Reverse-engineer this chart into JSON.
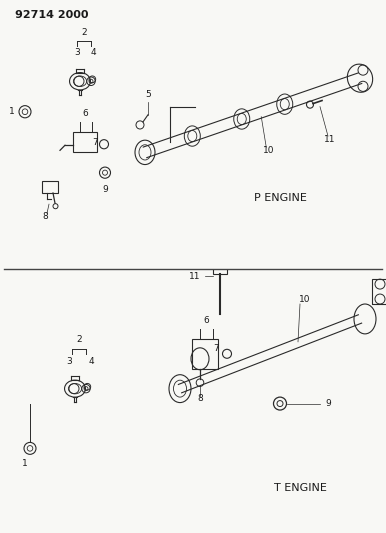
{
  "title": "92714 2000",
  "bg_color": "#f8f8f5",
  "line_color": "#2a2a2a",
  "text_color": "#1a1a1a",
  "panel1_label": "P ENGINE",
  "panel2_label": "T ENGINE",
  "fig_width": 3.86,
  "fig_height": 5.33,
  "dpi": 100
}
